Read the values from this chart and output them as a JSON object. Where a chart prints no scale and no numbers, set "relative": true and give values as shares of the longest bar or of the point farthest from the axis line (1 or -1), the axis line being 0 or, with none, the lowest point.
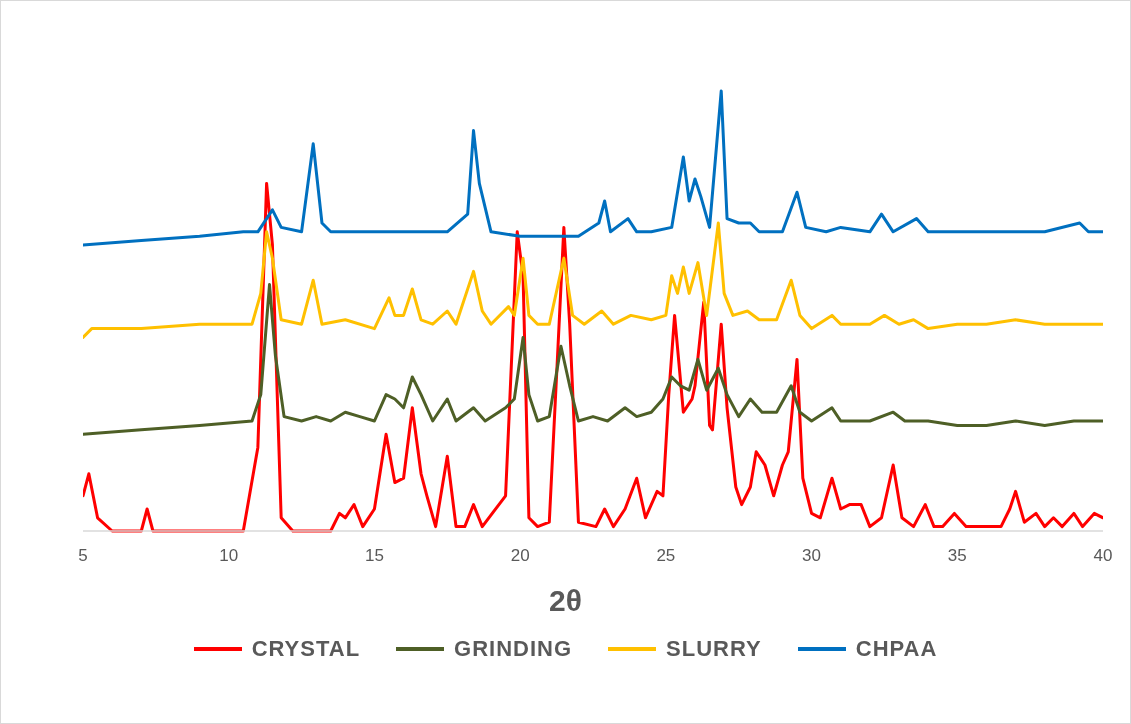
{
  "chart_data": {
    "type": "line",
    "relative": true,
    "xlabel": "2θ",
    "xlim": [
      5,
      40
    ],
    "xticks": [
      5,
      10,
      15,
      20,
      25,
      30,
      35,
      40
    ],
    "grid": false,
    "legend": "bottom",
    "marker": "none",
    "line_style": "solid",
    "series": [
      {
        "name": "CRYSTAL",
        "color": "#ff0000",
        "x": [
          5,
          5.2,
          5.5,
          6,
          7,
          7.2,
          7.4,
          10.5,
          11,
          11.3,
          11.5,
          11.8,
          12.2,
          13.5,
          13.8,
          14,
          14.3,
          14.6,
          15,
          15.4,
          15.7,
          16,
          16.3,
          16.6,
          16.8,
          17.1,
          17.5,
          17.8,
          18.1,
          18.4,
          18.7,
          19.5,
          19.9,
          20.1,
          20.3,
          20.6,
          21,
          21.3,
          21.5,
          21.7,
          22,
          22.6,
          22.9,
          23.2,
          23.6,
          24,
          24.3,
          24.7,
          24.9,
          25.1,
          25.3,
          25.6,
          25.9,
          26,
          26.3,
          26.5,
          26.6,
          26.9,
          27.1,
          27.4,
          27.6,
          27.9,
          28.1,
          28.4,
          28.7,
          29,
          29.2,
          29.5,
          29.7,
          30,
          30.3,
          30.7,
          31,
          31.3,
          31.7,
          32,
          32.4,
          32.8,
          33.1,
          33.5,
          33.9,
          34.2,
          34.5,
          34.9,
          35.3,
          35.7,
          36.5,
          36.8,
          37,
          37.3,
          37.7,
          38,
          38.3,
          38.6,
          39,
          39.3,
          39.7,
          40
        ],
        "values": [
          0.08,
          0.13,
          0.03,
          0,
          0,
          0.05,
          0,
          0,
          0.19,
          0.79,
          0.65,
          0.03,
          0,
          0,
          0.04,
          0.03,
          0.06,
          0.01,
          0.05,
          0.22,
          0.11,
          0.12,
          0.28,
          0.13,
          0.08,
          0.01,
          0.17,
          0.01,
          0.01,
          0.06,
          0.01,
          0.08,
          0.68,
          0.58,
          0.03,
          0.01,
          0.02,
          0.42,
          0.69,
          0.47,
          0.02,
          0.01,
          0.05,
          0.01,
          0.05,
          0.12,
          0.03,
          0.09,
          0.08,
          0.31,
          0.49,
          0.27,
          0.3,
          0.33,
          0.52,
          0.24,
          0.23,
          0.47,
          0.28,
          0.1,
          0.06,
          0.1,
          0.18,
          0.15,
          0.08,
          0.15,
          0.18,
          0.39,
          0.12,
          0.04,
          0.03,
          0.12,
          0.05,
          0.06,
          0.06,
          0.01,
          0.03,
          0.15,
          0.03,
          0.01,
          0.06,
          0.01,
          0.01,
          0.04,
          0.01,
          0.01,
          0.01,
          0.05,
          0.09,
          0.02,
          0.04,
          0.01,
          0.03,
          0.01,
          0.04,
          0.01,
          0.04,
          0.03
        ]
      },
      {
        "name": "GRINDING",
        "color": "#4e5f26",
        "x": [
          5,
          7,
          9,
          10.8,
          11.1,
          11.4,
          11.6,
          11.9,
          12.5,
          13,
          13.5,
          14,
          14.5,
          15,
          15.4,
          15.7,
          16,
          16.3,
          16.6,
          17,
          17.5,
          17.8,
          18.4,
          18.8,
          19.5,
          19.8,
          20.1,
          20.3,
          20.6,
          21,
          21.4,
          21.7,
          22,
          22.5,
          23,
          23.6,
          24,
          24.5,
          24.9,
          25.2,
          25.5,
          25.8,
          26.1,
          26.4,
          26.8,
          27.1,
          27.5,
          27.9,
          28.3,
          28.8,
          29.3,
          29.6,
          30,
          30.7,
          31,
          32,
          32.8,
          33.2,
          34,
          35,
          36,
          37,
          38,
          39,
          40
        ],
        "values": [
          0.22,
          0.23,
          0.24,
          0.25,
          0.31,
          0.56,
          0.4,
          0.26,
          0.25,
          0.26,
          0.25,
          0.27,
          0.26,
          0.25,
          0.31,
          0.3,
          0.28,
          0.35,
          0.31,
          0.25,
          0.3,
          0.25,
          0.28,
          0.25,
          0.28,
          0.3,
          0.44,
          0.31,
          0.25,
          0.26,
          0.42,
          0.33,
          0.25,
          0.26,
          0.25,
          0.28,
          0.26,
          0.27,
          0.3,
          0.35,
          0.33,
          0.32,
          0.39,
          0.32,
          0.37,
          0.31,
          0.26,
          0.3,
          0.27,
          0.27,
          0.33,
          0.27,
          0.25,
          0.28,
          0.25,
          0.25,
          0.27,
          0.25,
          0.25,
          0.24,
          0.24,
          0.25,
          0.24,
          0.25,
          0.25
        ]
      },
      {
        "name": "SLURRY",
        "color": "#ffc000",
        "x": [
          5,
          5.3,
          7,
          9,
          10.8,
          11.1,
          11.3,
          11.5,
          11.8,
          12.5,
          12.9,
          13.2,
          14,
          15,
          15.5,
          15.7,
          16,
          16.3,
          16.6,
          17,
          17.5,
          17.8,
          18.4,
          18.7,
          19,
          19.6,
          19.8,
          20.1,
          20.3,
          20.6,
          21,
          21.5,
          21.8,
          22.2,
          22.8,
          23.2,
          23.8,
          24.5,
          25,
          25.2,
          25.4,
          25.6,
          25.8,
          26.1,
          26.4,
          26.8,
          27,
          27.3,
          27.8,
          28.2,
          28.8,
          29.3,
          29.6,
          30,
          30.7,
          31,
          32,
          32.5,
          33,
          33.5,
          34,
          35,
          36,
          37,
          38,
          39,
          40
        ],
        "values": [
          0.44,
          0.46,
          0.46,
          0.47,
          0.47,
          0.54,
          0.68,
          0.62,
          0.48,
          0.47,
          0.57,
          0.47,
          0.48,
          0.46,
          0.53,
          0.49,
          0.49,
          0.55,
          0.48,
          0.47,
          0.5,
          0.47,
          0.59,
          0.5,
          0.47,
          0.51,
          0.49,
          0.62,
          0.49,
          0.47,
          0.47,
          0.62,
          0.49,
          0.47,
          0.5,
          0.47,
          0.49,
          0.48,
          0.49,
          0.58,
          0.54,
          0.6,
          0.54,
          0.61,
          0.49,
          0.7,
          0.54,
          0.49,
          0.5,
          0.48,
          0.48,
          0.57,
          0.49,
          0.46,
          0.49,
          0.47,
          0.47,
          0.49,
          0.47,
          0.48,
          0.46,
          0.47,
          0.47,
          0.48,
          0.47,
          0.47,
          0.47
        ]
      },
      {
        "name": "CHPAA",
        "color": "#0070c0",
        "x": [
          5,
          7,
          9,
          10.5,
          11,
          11.5,
          11.8,
          12.5,
          12.9,
          13.2,
          13.5,
          15,
          16,
          16.5,
          17.5,
          18.2,
          18.4,
          18.6,
          19,
          20,
          21,
          22,
          22.7,
          22.9,
          23.1,
          23.7,
          24,
          24.5,
          25.2,
          25.6,
          25.8,
          26,
          26.2,
          26.5,
          26.9,
          27.1,
          27.5,
          27.9,
          28.2,
          29,
          29.5,
          29.8,
          30.5,
          31,
          32,
          32.4,
          32.8,
          33.6,
          34,
          35,
          36,
          37,
          38,
          39.2,
          39.5,
          40
        ],
        "values": [
          0.65,
          0.66,
          0.67,
          0.68,
          0.68,
          0.73,
          0.69,
          0.68,
          0.88,
          0.7,
          0.68,
          0.68,
          0.68,
          0.68,
          0.68,
          0.72,
          0.91,
          0.79,
          0.68,
          0.67,
          0.67,
          0.67,
          0.7,
          0.75,
          0.68,
          0.71,
          0.68,
          0.68,
          0.69,
          0.85,
          0.75,
          0.8,
          0.76,
          0.69,
          1,
          0.71,
          0.7,
          0.7,
          0.68,
          0.68,
          0.77,
          0.69,
          0.68,
          0.69,
          0.68,
          0.72,
          0.68,
          0.71,
          0.68,
          0.68,
          0.68,
          0.68,
          0.68,
          0.7,
          0.68,
          0.68
        ]
      }
    ]
  }
}
